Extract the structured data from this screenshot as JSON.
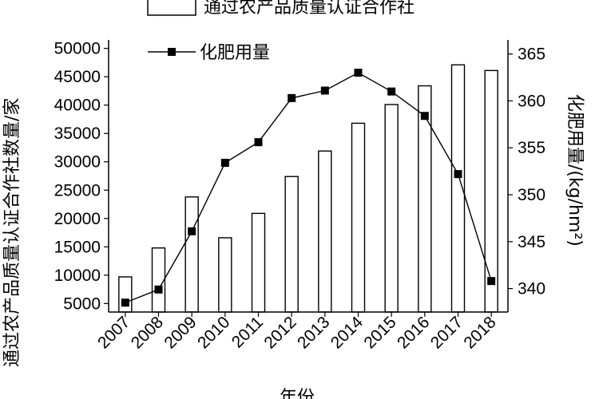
{
  "chart_data": {
    "type": "bar+line",
    "categories": [
      "2007",
      "2008",
      "2009",
      "2010",
      "2011",
      "2012",
      "2013",
      "2014",
      "2015",
      "2016",
      "2017",
      "2018"
    ],
    "series": [
      {
        "name": "通过农产品质量认证合作社",
        "type": "bar",
        "axis": "left",
        "values": [
          9700,
          14800,
          23800,
          16600,
          20900,
          27400,
          31900,
          36800,
          40100,
          43400,
          47100,
          46100
        ]
      },
      {
        "name": "化肥用量",
        "type": "line",
        "axis": "right",
        "values": [
          338.5,
          339.9,
          346.1,
          353.4,
          355.6,
          360.3,
          361.1,
          363.0,
          361.0,
          358.4,
          352.2,
          340.8
        ]
      }
    ],
    "xlabel": "年份",
    "ylabel_left": "通过农产品质量认证合作社数量/家",
    "ylabel_right": "化肥用量/(kg/hm²)",
    "ylim_left": [
      3500,
      51500
    ],
    "ylim_right": [
      337.5,
      366.5
    ],
    "yticks_left": [
      "5000",
      "10000",
      "15000",
      "20000",
      "25000",
      "30000",
      "35000",
      "40000",
      "45000",
      "50000"
    ],
    "yticks_right": [
      "340",
      "345",
      "350",
      "355",
      "360",
      "365"
    ],
    "legend_placement": "top-left",
    "grid": false
  }
}
